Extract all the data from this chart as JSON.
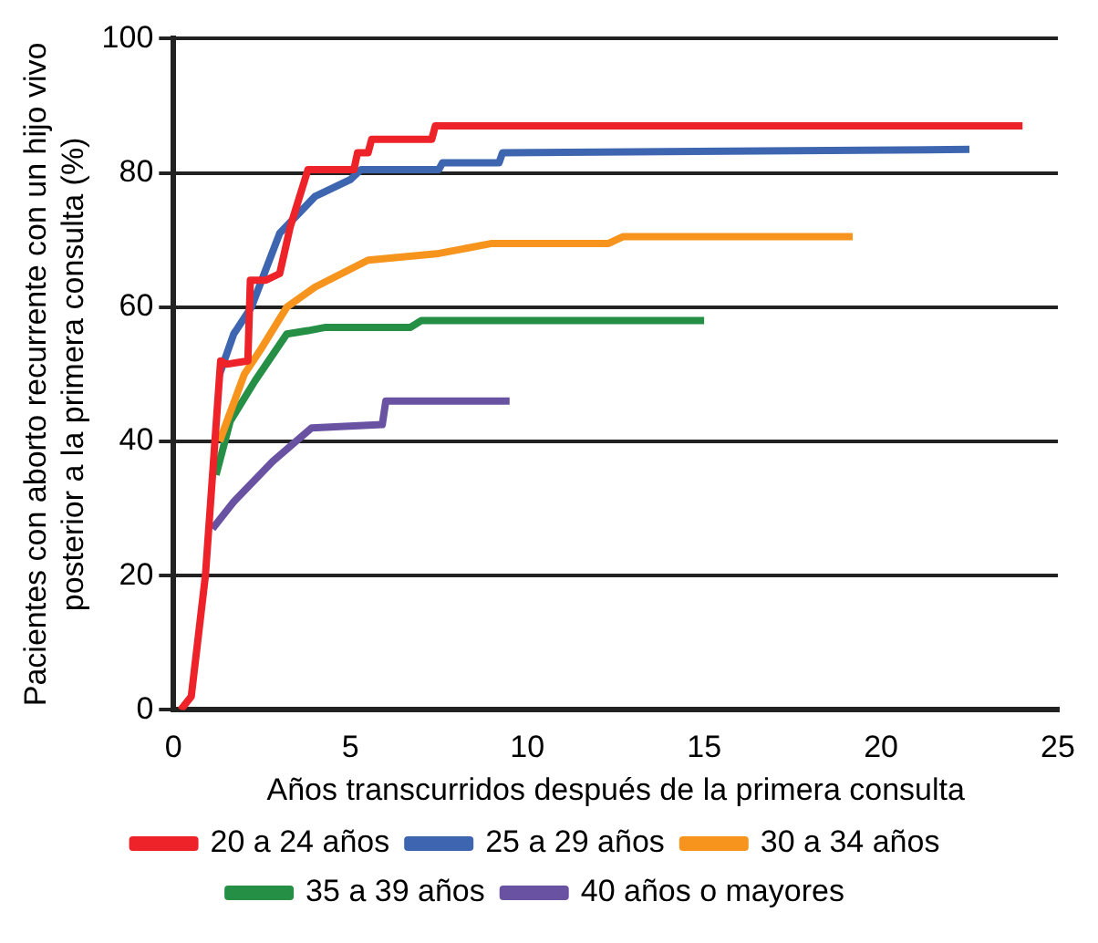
{
  "chart_data": {
    "type": "line",
    "xlabel": "Años transcurridos después de la primera consulta",
    "ylabel": "Pacientes con aborto recurrente con un hijo vivo\nposterior a la primera consulta (%)",
    "xlim": [
      0,
      25
    ],
    "xticks": [
      0,
      5,
      10,
      15,
      20,
      25
    ],
    "ylim": [
      0,
      100
    ],
    "yticks": [
      0,
      20,
      40,
      60,
      80,
      100
    ],
    "grid": "y",
    "legend": "bottom",
    "marker": "none",
    "series": [
      {
        "name": "20 a 24 años",
        "color": "#ee2229",
        "x": [
          0.2,
          0.5,
          0.9,
          1.33,
          1.5,
          2.1,
          2.17,
          2.6,
          3.0,
          3.3,
          3.8,
          4.0,
          5.1,
          5.2,
          5.5,
          5.6,
          7.3,
          7.4,
          24
        ],
        "values": [
          0,
          2,
          20,
          52,
          51.5,
          52,
          64,
          64,
          65,
          72,
          80.5,
          80.5,
          80.5,
          83,
          83,
          85,
          85,
          87,
          87
        ]
      },
      {
        "name": "25 a 29 años",
        "color": "#3e66b0",
        "x": [
          1.3,
          1.7,
          2.2,
          3.0,
          4.0,
          5.0,
          5.3,
          7.5,
          7.6,
          9.2,
          9.3,
          22.5
        ],
        "values": [
          50,
          56,
          60,
          71,
          76.5,
          79,
          80.5,
          80.5,
          81.5,
          81.5,
          83,
          83.5
        ]
      },
      {
        "name": "30 a 34 años",
        "color": "#f7941d",
        "x": [
          1.3,
          2.0,
          2.5,
          3.2,
          4.0,
          5.5,
          7.5,
          9.0,
          12.3,
          12.7,
          19.2
        ],
        "values": [
          40,
          50,
          54,
          60,
          63,
          67,
          68,
          69.5,
          69.5,
          70.5,
          70.5
        ]
      },
      {
        "name": "35 a 39 años",
        "color": "#258f46",
        "x": [
          1.2,
          1.6,
          2.3,
          3.2,
          3.8,
          4.3,
          6.7,
          7.0,
          15
        ],
        "values": [
          35,
          43,
          49,
          56,
          56.5,
          57,
          57,
          58,
          58
        ]
      },
      {
        "name": "40 años o mayores",
        "color": "#6a52a3",
        "x": [
          1.1,
          1.7,
          2.8,
          3.9,
          5.9,
          6.0,
          9.5
        ],
        "values": [
          27,
          31,
          37,
          42,
          42.5,
          46,
          46
        ]
      }
    ]
  }
}
